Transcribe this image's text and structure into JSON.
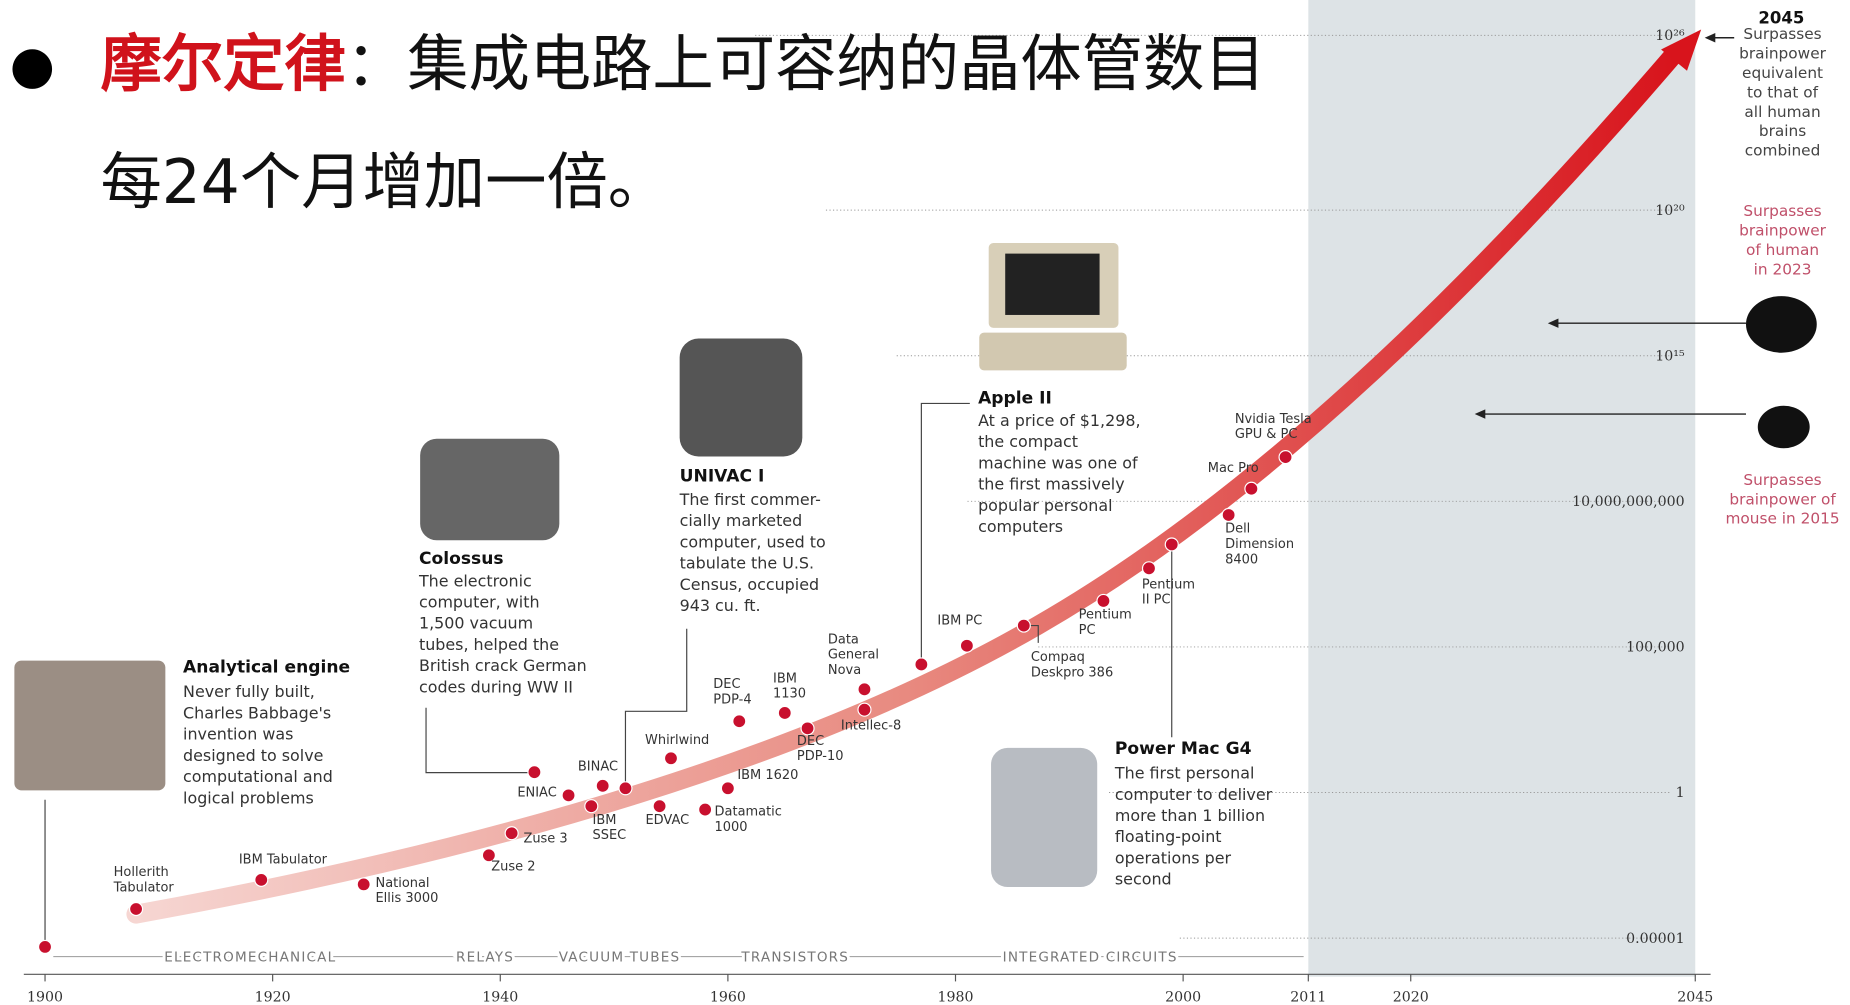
{
  "slide": {
    "bullet": "●",
    "keyword": "摩尔定律",
    "line1": "：集成电路上可容纳的晶体管数目",
    "line2": "每24个月增加一倍。"
  },
  "chart_data": {
    "type": "scatter",
    "log_scale": true,
    "color": "#c8102e",
    "x": [
      1900,
      1908,
      1919,
      1928,
      1939,
      1941,
      1946,
      1943,
      1949,
      1948,
      1951,
      1955,
      1954,
      1958,
      1960,
      1961,
      1965,
      1967,
      1972,
      1972,
      1977,
      1981,
      1986,
      1993,
      1997,
      1999,
      2004,
      2006,
      2009
    ],
    "values": [
      5e-06,
      0.0001,
      0.001,
      0.0007,
      0.007,
      0.04,
      0.8,
      5,
      1.7,
      0.34,
      1.4,
      15,
      0.34,
      0.26,
      1.4,
      280,
      540,
      160,
      3500,
      700,
      25000,
      110000,
      540000,
      3800000,
      50000000,
      330000000,
      3400000000,
      27000000000,
      330000000000
    ],
    "point_labels": [
      null,
      [
        "Hollerith",
        "Tabulator"
      ],
      [
        "IBM Tabulator"
      ],
      [
        "National",
        "Ellis 3000"
      ],
      [
        "Zuse 2"
      ],
      [
        "Zuse 3"
      ],
      [
        "ENIAC"
      ],
      null,
      [
        "BINAC"
      ],
      [
        "IBM",
        "SSEC"
      ],
      null,
      [
        "Whirlwind"
      ],
      [
        "EDVAC"
      ],
      [
        "Datamatic",
        "1000"
      ],
      [
        "IBM 1620"
      ],
      [
        "DEC",
        "PDP-4"
      ],
      [
        "IBM",
        "1130"
      ],
      [
        "DEC",
        "PDP-10"
      ],
      [
        "Data",
        "General",
        "Nova"
      ],
      [
        "Intellec-8"
      ],
      null,
      [
        "IBM PC"
      ],
      [
        "Compaq",
        "Deskpro 386"
      ],
      [
        "Pentium",
        "PC"
      ],
      [
        "Pentium",
        "II PC"
      ],
      null,
      [
        "Dell",
        "Dimension",
        "8400"
      ],
      [
        "Mac Pro"
      ],
      [
        "Nvidia Tesla",
        "GPU & PC"
      ]
    ],
    "xlim": [
      1900,
      2045
    ],
    "xticks": [
      1900,
      1920,
      1940,
      1960,
      1980,
      2000,
      2011,
      2020,
      2045
    ],
    "ylim": [
      1e-06,
      1e+26
    ],
    "yticks": [
      {
        "value": 1e-05,
        "label": "0.00001"
      },
      1,
      {
        "value": 100000,
        "label": "100,000"
      },
      {
        "value": 10000000000,
        "label": "10,000,000,000"
      },
      {
        "value": 1000000000000000.0,
        "label": "10¹⁵"
      },
      {
        "value": 1e+20,
        "label": "10²⁰"
      },
      {
        "value": 1e+26,
        "label": "10²⁶"
      }
    ],
    "eras": [
      "ELECTROMECHANICAL",
      "RELAYS",
      "VACUUM TUBES",
      "TRANSISTORS",
      "INTEGRATED CIRCUITS"
    ],
    "annotations": [
      {
        "title": "Analytical engine",
        "lines": [
          "Never fully built,",
          "Charles Babbage's",
          "invention was",
          "designed to solve",
          "computational and",
          "logical problems"
        ]
      },
      {
        "title": "Colossus",
        "lines": [
          "The electronic",
          "computer, with",
          "1,500 vacuum",
          "tubes, helped the",
          "British crack German",
          "codes during WW II"
        ]
      },
      {
        "title": "UNIVAC I",
        "lines": [
          "The first commer-",
          "cially marketed",
          "computer, used to",
          "tabulate the U.S.",
          "Census, occupied",
          "943 cu. ft."
        ]
      },
      {
        "title": "Apple II",
        "lines": [
          "At a price of $1,298,",
          "the compact",
          "machine was one of",
          "the first massively",
          "popular personal",
          "computers"
        ]
      },
      {
        "title": "Power Mac G4",
        "lines": [
          "The first personal",
          "computer to deliver",
          "more than 1 billion",
          "floating-point",
          "operations per",
          "second"
        ]
      }
    ],
    "milestones": [
      {
        "title": "2045",
        "lines": [
          "Surpasses",
          "brainpower",
          "equivalent",
          "to that of",
          "all human",
          "brains",
          "combined"
        ]
      },
      {
        "lines": [
          "Surpasses",
          "brainpower",
          "of human",
          "in 2023"
        ]
      },
      {
        "lines": [
          "Surpasses",
          "brainpower of",
          "mouse in 2015"
        ]
      }
    ]
  }
}
